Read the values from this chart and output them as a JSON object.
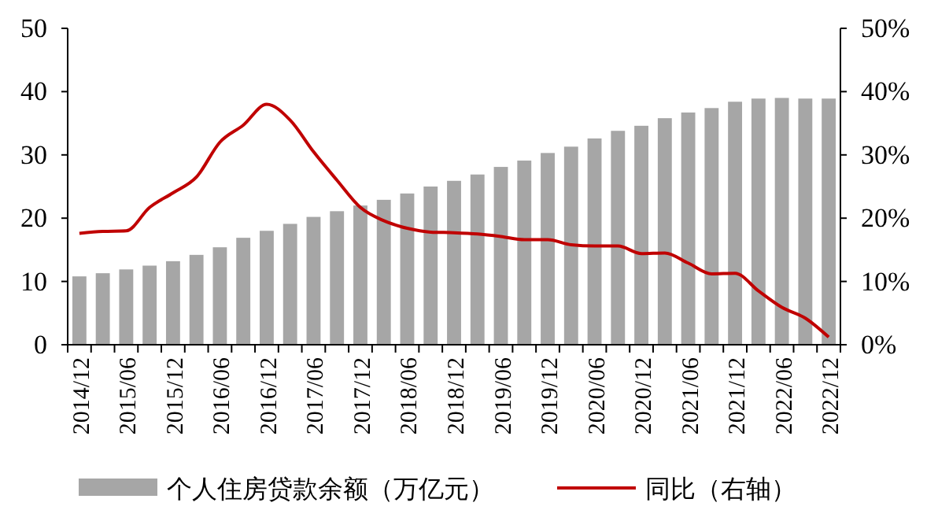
{
  "chart_data": {
    "type": "bar",
    "categories": [
      "2014/12",
      null,
      "2015/06",
      null,
      "2015/12",
      null,
      "2016/06",
      null,
      "2016/12",
      null,
      "2017/06",
      null,
      "2017/12",
      null,
      "2018/06",
      null,
      "2018/12",
      null,
      "2019/06",
      null,
      "2019/12",
      null,
      "2020/06",
      null,
      "2020/12",
      null,
      "2021/06",
      null,
      "2021/12",
      null,
      "2022/06",
      null,
      "2022/12"
    ],
    "series": [
      {
        "name": "个人住房贷款余额（万亿元）",
        "color": "#a6a6a6",
        "values": [
          10.8,
          11.3,
          11.9,
          12.5,
          13.2,
          14.2,
          15.4,
          16.9,
          18.0,
          19.1,
          20.2,
          21.1,
          22.0,
          22.9,
          23.9,
          25.0,
          25.9,
          26.9,
          28.1,
          29.1,
          30.3,
          31.3,
          32.6,
          33.8,
          34.6,
          35.8,
          36.7,
          37.4,
          38.4,
          38.9,
          39.0,
          38.9,
          38.9
        ]
      },
      {
        "name": "同比（右轴）",
        "type": "line",
        "axis": "y2",
        "color": "#c00000",
        "values": [
          17.6,
          17.9,
          18.0,
          21.7,
          24.0,
          26.5,
          32.0,
          34.7,
          38.0,
          35.5,
          30.5,
          26.0,
          21.7,
          19.6,
          18.4,
          17.8,
          17.7,
          17.5,
          17.1,
          16.6,
          16.6,
          15.8,
          15.6,
          15.6,
          14.4,
          14.5,
          12.9,
          11.2,
          11.3,
          8.5,
          5.9,
          4.2,
          1.2
        ]
      }
    ],
    "ylim": [
      0,
      50
    ],
    "yticks": [
      0,
      10,
      20,
      30,
      40,
      50
    ],
    "y2lim": [
      0,
      50
    ],
    "y2ticks": [
      {
        "value": 0,
        "label": "0%"
      },
      {
        "value": 10,
        "label": "10%"
      },
      {
        "value": 20,
        "label": "20%"
      },
      {
        "value": 30,
        "label": "30%"
      },
      {
        "value": 40,
        "label": "40%"
      },
      {
        "value": 50,
        "label": "50%"
      }
    ],
    "legend": "bottom",
    "grid": false,
    "line_style": "solid",
    "marker": "none"
  }
}
